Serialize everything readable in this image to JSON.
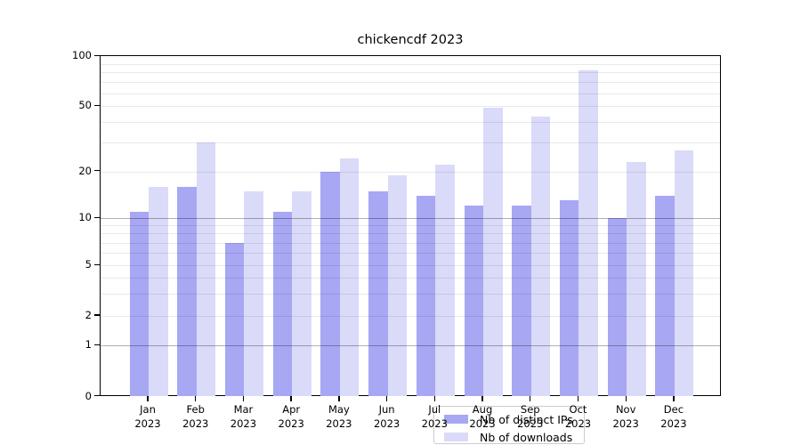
{
  "title": "chickencdf 2023",
  "legend": {
    "items": [
      {
        "label": "Nb of distinct IPs",
        "color": "#a7a7f3"
      },
      {
        "label": "Nb of downloads",
        "color": "#dadaf9"
      }
    ]
  },
  "chart_data": {
    "type": "bar",
    "title": "chickencdf 2023",
    "categories": [
      "Jan",
      "Feb",
      "Mar",
      "Apr",
      "May",
      "Jun",
      "Jul",
      "Aug",
      "Sep",
      "Oct",
      "Nov",
      "Dec"
    ],
    "year": "2023",
    "series": [
      {
        "name": "Nb of distinct IPs",
        "color": "#a7a7f3",
        "values": [
          11,
          16,
          7,
          11,
          20,
          15,
          14,
          12,
          12,
          13,
          10,
          14
        ]
      },
      {
        "name": "Nb of downloads",
        "color": "#dadaf9",
        "values": [
          16,
          30,
          15,
          15,
          24,
          19,
          22,
          49,
          43,
          82,
          23,
          27
        ]
      }
    ],
    "yscale": "symlog",
    "ylim": [
      0,
      100
    ],
    "ytick_labels": [
      "0",
      "1",
      "2",
      "5",
      "10",
      "20",
      "50",
      "100"
    ],
    "ytick_values": [
      0,
      1,
      2,
      5,
      10,
      20,
      50,
      100
    ],
    "major_gridlines": [
      1,
      10,
      100
    ],
    "minor_gridlines": [
      2,
      3,
      4,
      5,
      6,
      7,
      8,
      9,
      20,
      30,
      40,
      50,
      60,
      70,
      80,
      90
    ],
    "grid": true,
    "legend_position": "lower center",
    "xlabel": "",
    "ylabel": ""
  }
}
